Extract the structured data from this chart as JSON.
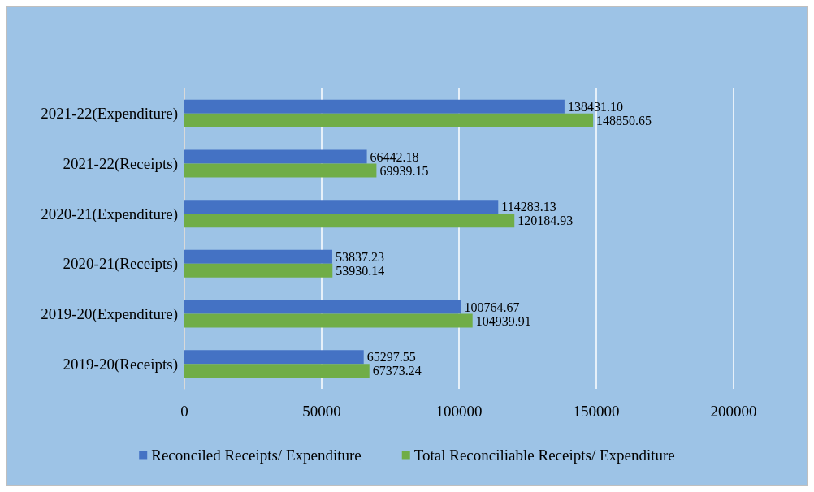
{
  "chart_data": {
    "type": "bar",
    "orientation": "horizontal",
    "categories": [
      "2021-22(Expenditure)",
      "2021-22(Receipts)",
      "2020-21(Expenditure)",
      "2020-21(Receipts)",
      "2019-20(Expenditure)",
      "2019-20(Receipts)"
    ],
    "series": [
      {
        "name": "Reconciled Receipts/ Expenditure",
        "color": "#4472c4",
        "values": [
          138431.1,
          66442.18,
          114283.13,
          53837.23,
          100764.67,
          65297.55
        ],
        "value_labels": [
          "138431.10",
          "66442.18",
          "114283.13",
          "53837.23",
          "100764.67",
          "65297.55"
        ]
      },
      {
        "name": "Total Reconciliable Receipts/ Expenditure",
        "color": "#70ad47",
        "values": [
          148850.65,
          69939.15,
          120184.93,
          53930.14,
          104939.91,
          67373.24
        ],
        "value_labels": [
          "148850.65",
          "69939.15",
          "120184.93",
          "53930.14",
          "104939.91",
          "67373.24"
        ]
      }
    ],
    "xlim": [
      0,
      200000
    ],
    "xticks": [
      0,
      50000,
      100000,
      150000,
      200000
    ],
    "grid": "x",
    "legend": "bottom"
  }
}
